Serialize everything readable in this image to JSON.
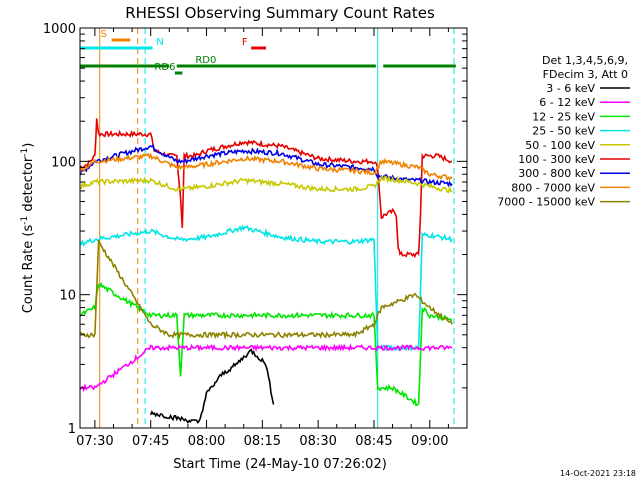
{
  "chart_data": {
    "type": "line",
    "title": "RHESSI Observing Summary Count Rates",
    "xlabel": "Start Time (24-May-10 07:26:02)",
    "ylabel_main": "Count Rate (s",
    "ylabel_sup1": "-1",
    "ylabel_mid": " detector",
    "ylabel_sup2": "-1",
    "ylabel_end": ")",
    "yscale": "log",
    "ylim": [
      1,
      1000
    ],
    "xlim_min": [
      -4,
      100
    ],
    "xticks": [
      {
        "min": 0,
        "label": "07:30"
      },
      {
        "min": 15,
        "label": "07:45"
      },
      {
        "min": 30,
        "label": "08:00"
      },
      {
        "min": 45,
        "label": "08:15"
      },
      {
        "min": 60,
        "label": "08:30"
      },
      {
        "min": 75,
        "label": "08:45"
      },
      {
        "min": 90,
        "label": "09:00"
      }
    ],
    "yticks": [
      {
        "value": 1,
        "label": "1"
      },
      {
        "value": 10,
        "label": "10"
      },
      {
        "value": 100,
        "label": "100"
      },
      {
        "value": 1000,
        "label": "1000"
      }
    ],
    "legend_header": [
      "Det 1,3,4,5,6,9,",
      "FDecim 3, Att 0"
    ],
    "legend": [
      {
        "label": "3 - 6 keV",
        "color": "#000000"
      },
      {
        "label": "6 - 12 keV",
        "color": "#ff00ff"
      },
      {
        "label": "12 - 25 keV",
        "color": "#00e600"
      },
      {
        "label": "25 - 50 keV",
        "color": "#00e6e6"
      },
      {
        "label": "50 - 100 keV",
        "color": "#c8c800"
      },
      {
        "label": "100 - 300 keV",
        "color": "#e60000"
      },
      {
        "label": "300 - 800 keV",
        "color": "#0000e6"
      },
      {
        "label": "800 - 7000 keV",
        "color": "#f08200"
      },
      {
        "label": "7000 - 15000 keV",
        "color": "#8c8200"
      }
    ],
    "flags": [
      {
        "label": "S",
        "color": "#f08200",
        "x_label": 1.5,
        "x": [
          4.5,
          9.5
        ],
        "y_level": "high"
      },
      {
        "label": "N",
        "color": "#00e6e6",
        "x_label": 16.5,
        "x": [
          -4,
          15.5
        ],
        "y_level": "mid"
      },
      {
        "label": "F",
        "color": "#e60000",
        "x_label": 39.5,
        "x": [
          42,
          46
        ],
        "y_level": "mid"
      },
      {
        "label": "RD6",
        "color": "#008000",
        "x_label": 16,
        "x": [
          21.5,
          23.5
        ],
        "y_level": "low"
      },
      {
        "label": "RD0",
        "color": "#008000",
        "x_label": 27,
        "x": [
          -4,
          100
        ],
        "y_level": "lowest"
      }
    ],
    "series": [
      {
        "name": "100 - 300 keV",
        "color": "#e60000",
        "x": [
          -4,
          -2,
          0,
          0.5,
          1,
          6,
          9.5,
          11.5,
          15,
          16,
          20,
          22,
          23,
          23.5,
          24,
          27,
          30,
          40,
          50,
          60,
          70,
          75,
          76,
          77,
          78,
          80,
          81,
          81.5,
          82,
          87,
          87.5,
          88,
          90.5,
          91,
          92,
          94,
          96
        ],
        "y": [
          90,
          95,
          110,
          210,
          160,
          160,
          160,
          160,
          160,
          120,
          110,
          110,
          55,
          32,
          110,
          110,
          120,
          140,
          130,
          105,
          100,
          100,
          90,
          38,
          40,
          42,
          40,
          23,
          20,
          20,
          40,
          110,
          110,
          110,
          110,
          105,
          100
        ]
      },
      {
        "name": "300 - 800 keV",
        "color": "#0000e6",
        "x": [
          -4,
          0,
          15,
          22,
          24,
          30,
          40,
          50,
          60,
          70,
          75,
          76,
          80,
          85,
          87,
          90,
          96
        ],
        "y": [
          80,
          100,
          130,
          100,
          100,
          110,
          120,
          115,
          95,
          90,
          88,
          78,
          75,
          72,
          72,
          70,
          68
        ]
      },
      {
        "name": "800 - 7000 keV",
        "color": "#f08200",
        "x": [
          -4,
          0,
          15,
          22,
          24,
          30,
          40,
          50,
          60,
          70,
          75,
          77,
          82,
          87,
          90,
          96
        ],
        "y": [
          85,
          100,
          110,
          90,
          90,
          95,
          105,
          100,
          88,
          85,
          82,
          100,
          95,
          90,
          80,
          75
        ]
      },
      {
        "name": "50 - 100 keV",
        "color": "#c8c800",
        "x": [
          -4,
          0,
          15,
          22,
          24,
          30,
          40,
          50,
          60,
          70,
          75,
          77,
          82,
          87,
          90,
          96
        ],
        "y": [
          65,
          70,
          72,
          62,
          62,
          65,
          72,
          68,
          62,
          62,
          65,
          75,
          72,
          68,
          65,
          60
        ]
      },
      {
        "name": "25 - 50 keV",
        "color": "#00e6e6",
        "x": [
          -4,
          0,
          15,
          22,
          24,
          30,
          40,
          50,
          60,
          70,
          75,
          76,
          77,
          82,
          87,
          88,
          90,
          96
        ],
        "y": [
          24,
          26,
          30,
          26,
          26,
          27,
          32,
          27,
          25,
          25,
          26,
          4,
          4,
          4,
          4,
          28,
          28,
          26
        ]
      },
      {
        "name": "12 - 25 keV",
        "color": "#00e600",
        "x": [
          -4,
          0,
          1,
          15,
          22,
          23,
          24,
          30,
          40,
          50,
          60,
          70,
          75,
          76,
          80,
          87,
          88,
          90,
          96
        ],
        "y": [
          7,
          8,
          12,
          7,
          7,
          2.5,
          7,
          7,
          7,
          7,
          7,
          7,
          7,
          2,
          2,
          1.5,
          8,
          7,
          6.5
        ]
      },
      {
        "name": "7000 - 15000 keV",
        "color": "#8c8200",
        "x": [
          -4,
          0,
          1,
          15,
          20,
          30,
          40,
          50,
          60,
          70,
          75,
          77,
          82,
          86,
          90,
          96
        ],
        "y": [
          5,
          5,
          25,
          6,
          5,
          5,
          5,
          5,
          5,
          5,
          6,
          8,
          9,
          10,
          8,
          6
        ]
      },
      {
        "name": "6 - 12 keV",
        "color": "#ff00ff",
        "x": [
          -4,
          0,
          15,
          30,
          40,
          50,
          60,
          70,
          75,
          96
        ],
        "y": [
          2,
          2,
          4,
          4,
          4,
          4,
          4,
          4,
          4,
          4
        ]
      },
      {
        "name": "3 - 6 keV",
        "color": "#000000",
        "x": [
          15,
          28,
          30,
          34,
          38,
          40,
          42,
          44,
          46,
          48
        ],
        "y": [
          1.3,
          1.1,
          1.8,
          2.5,
          3,
          3.4,
          3.8,
          3.4,
          3,
          1.5
        ]
      }
    ],
    "vlines": [
      {
        "x": 1.3,
        "color": "#f08200",
        "style": "solid"
      },
      {
        "x": 11.5,
        "color": "#f08200",
        "style": "dashed"
      },
      {
        "x": 13.5,
        "color": "#00e6e6",
        "style": "dashed"
      },
      {
        "x": 76,
        "color": "#00e6e6",
        "style": "solid"
      },
      {
        "x": 96.5,
        "color": "#00e6e6",
        "style": "dashed"
      }
    ],
    "timestamp": "14-Oct-2021 23:18"
  }
}
